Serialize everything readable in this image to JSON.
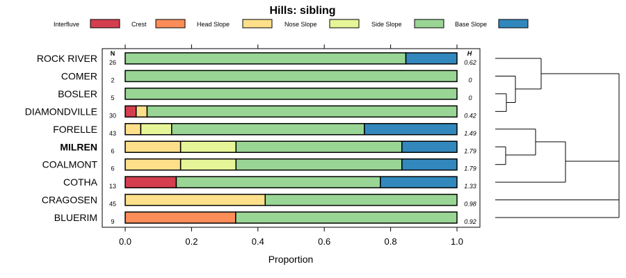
{
  "chart_data": {
    "type": "bar",
    "orientation": "horizontal",
    "stacked": true,
    "title": "Hills: sibling",
    "xlabel": "Proportion",
    "ylabel": "",
    "xlim": [
      0,
      1
    ],
    "x_ticks": [
      "0.0",
      "0.2",
      "0.4",
      "0.6",
      "0.8",
      "1.0"
    ],
    "n_header": "N",
    "h_header": "H",
    "legend_placement": "top",
    "series": [
      {
        "name": "Interfluve",
        "color": "#d53e4f"
      },
      {
        "name": "Crest",
        "color": "#fc8d59"
      },
      {
        "name": "Head Slope",
        "color": "#fee08b"
      },
      {
        "name": "Nose Slope",
        "color": "#e6f598"
      },
      {
        "name": "Side Slope",
        "color": "#99d594"
      },
      {
        "name": "Base Slope",
        "color": "#3288bd"
      }
    ],
    "categories": [
      {
        "label": "ROCK RIVER",
        "n": "26",
        "h": "0.62",
        "bold": false,
        "values": [
          0,
          0,
          0,
          0,
          0.846,
          0.154
        ]
      },
      {
        "label": "COMER",
        "n": "2",
        "h": "0",
        "bold": false,
        "values": [
          0,
          0,
          0,
          0,
          1.0,
          0
        ]
      },
      {
        "label": "BOSLER",
        "n": "5",
        "h": "0",
        "bold": false,
        "values": [
          0,
          0,
          0,
          0,
          1.0,
          0
        ]
      },
      {
        "label": "DIAMONDVILLE",
        "n": "30",
        "h": "0.42",
        "bold": false,
        "values": [
          0.033,
          0,
          0.033,
          0,
          0.934,
          0
        ]
      },
      {
        "label": "FORELLE",
        "n": "43",
        "h": "1.49",
        "bold": false,
        "values": [
          0,
          0,
          0.047,
          0.093,
          0.581,
          0.279
        ]
      },
      {
        "label": "MILREN",
        "n": "6",
        "h": "1.79",
        "bold": true,
        "values": [
          0,
          0,
          0.167,
          0.167,
          0.5,
          0.166
        ]
      },
      {
        "label": "COALMONT",
        "n": "6",
        "h": "1.79",
        "bold": false,
        "values": [
          0,
          0,
          0.167,
          0.167,
          0.5,
          0.166
        ]
      },
      {
        "label": "COTHA",
        "n": "13",
        "h": "1.33",
        "bold": false,
        "values": [
          0.154,
          0,
          0,
          0,
          0.615,
          0.231
        ]
      },
      {
        "label": "CRAGOSEN",
        "n": "45",
        "h": "0.98",
        "bold": false,
        "values": [
          0,
          0,
          0.422,
          0,
          0.578,
          0
        ]
      },
      {
        "label": "BLUERIM",
        "n": "9",
        "h": "0.92",
        "bold": false,
        "values": [
          0,
          0.333,
          0,
          0,
          0.667,
          0
        ]
      }
    ]
  }
}
